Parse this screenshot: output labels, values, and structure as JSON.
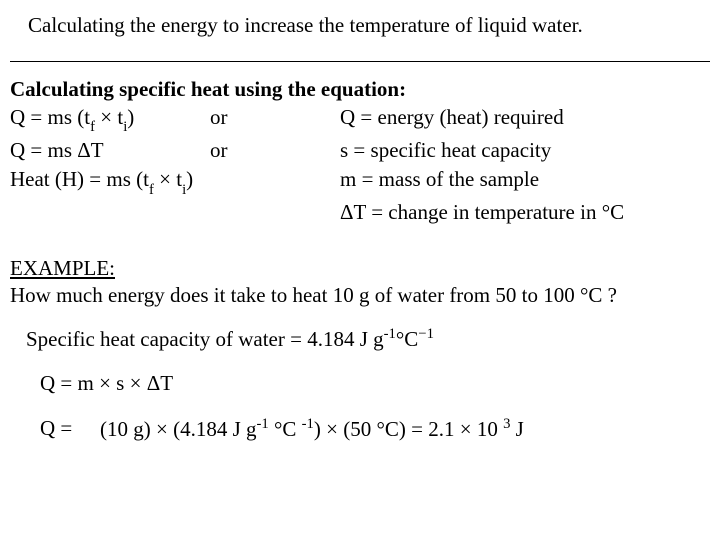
{
  "title": "Calculating the energy to increase the temperature of liquid water.",
  "subhead": "Calculating specific heat using the equation:",
  "eq": {
    "row1_left": "Q  = ms (t",
    "row1_left_sub1": "f",
    "row1_left_mid": " × t",
    "row1_left_sub2": "i",
    "row1_left_end": ")",
    "row1_mid": "or",
    "row1_right": "Q = energy (heat) required",
    "row2_left_a": "Q  = ms ",
    "row2_left_b": "ΔT",
    "row2_mid": "or",
    "row2_right": "s = specific heat capacity",
    "row3_left": "Heat (H)  = ms (t",
    "row3_left_sub1": "f",
    "row3_left_mid": " × t",
    "row3_left_sub2": "i",
    "row3_left_end": ")",
    "row3_right": "m = mass of the sample",
    "row4_right_a": "ΔT = change in temperature in ",
    "row4_right_b": "°C"
  },
  "example_label": "EXAMPLE:",
  "example_question": "How much energy does it take to heat 10 g of water from 50 to 100 °C ?",
  "shc_line_a": "Specific heat capacity of water = 4.184 J g",
  "shc_sup1": "-1",
  "shc_mid": "°C",
  "shc_sup2": "−1",
  "form1": "Q = m  × s  × ΔT",
  "form2_lhs": "Q =",
  "form2_rhs_a": "(10 g) × (4.184 J g",
  "form2_sup1": "-1",
  "form2_rhs_b": " °C ",
  "form2_sup2": "-1",
  "form2_rhs_c": ") × (50 °C)  =  2.1 × 10 ",
  "form2_sup3": "3",
  "form2_rhs_d": " J"
}
